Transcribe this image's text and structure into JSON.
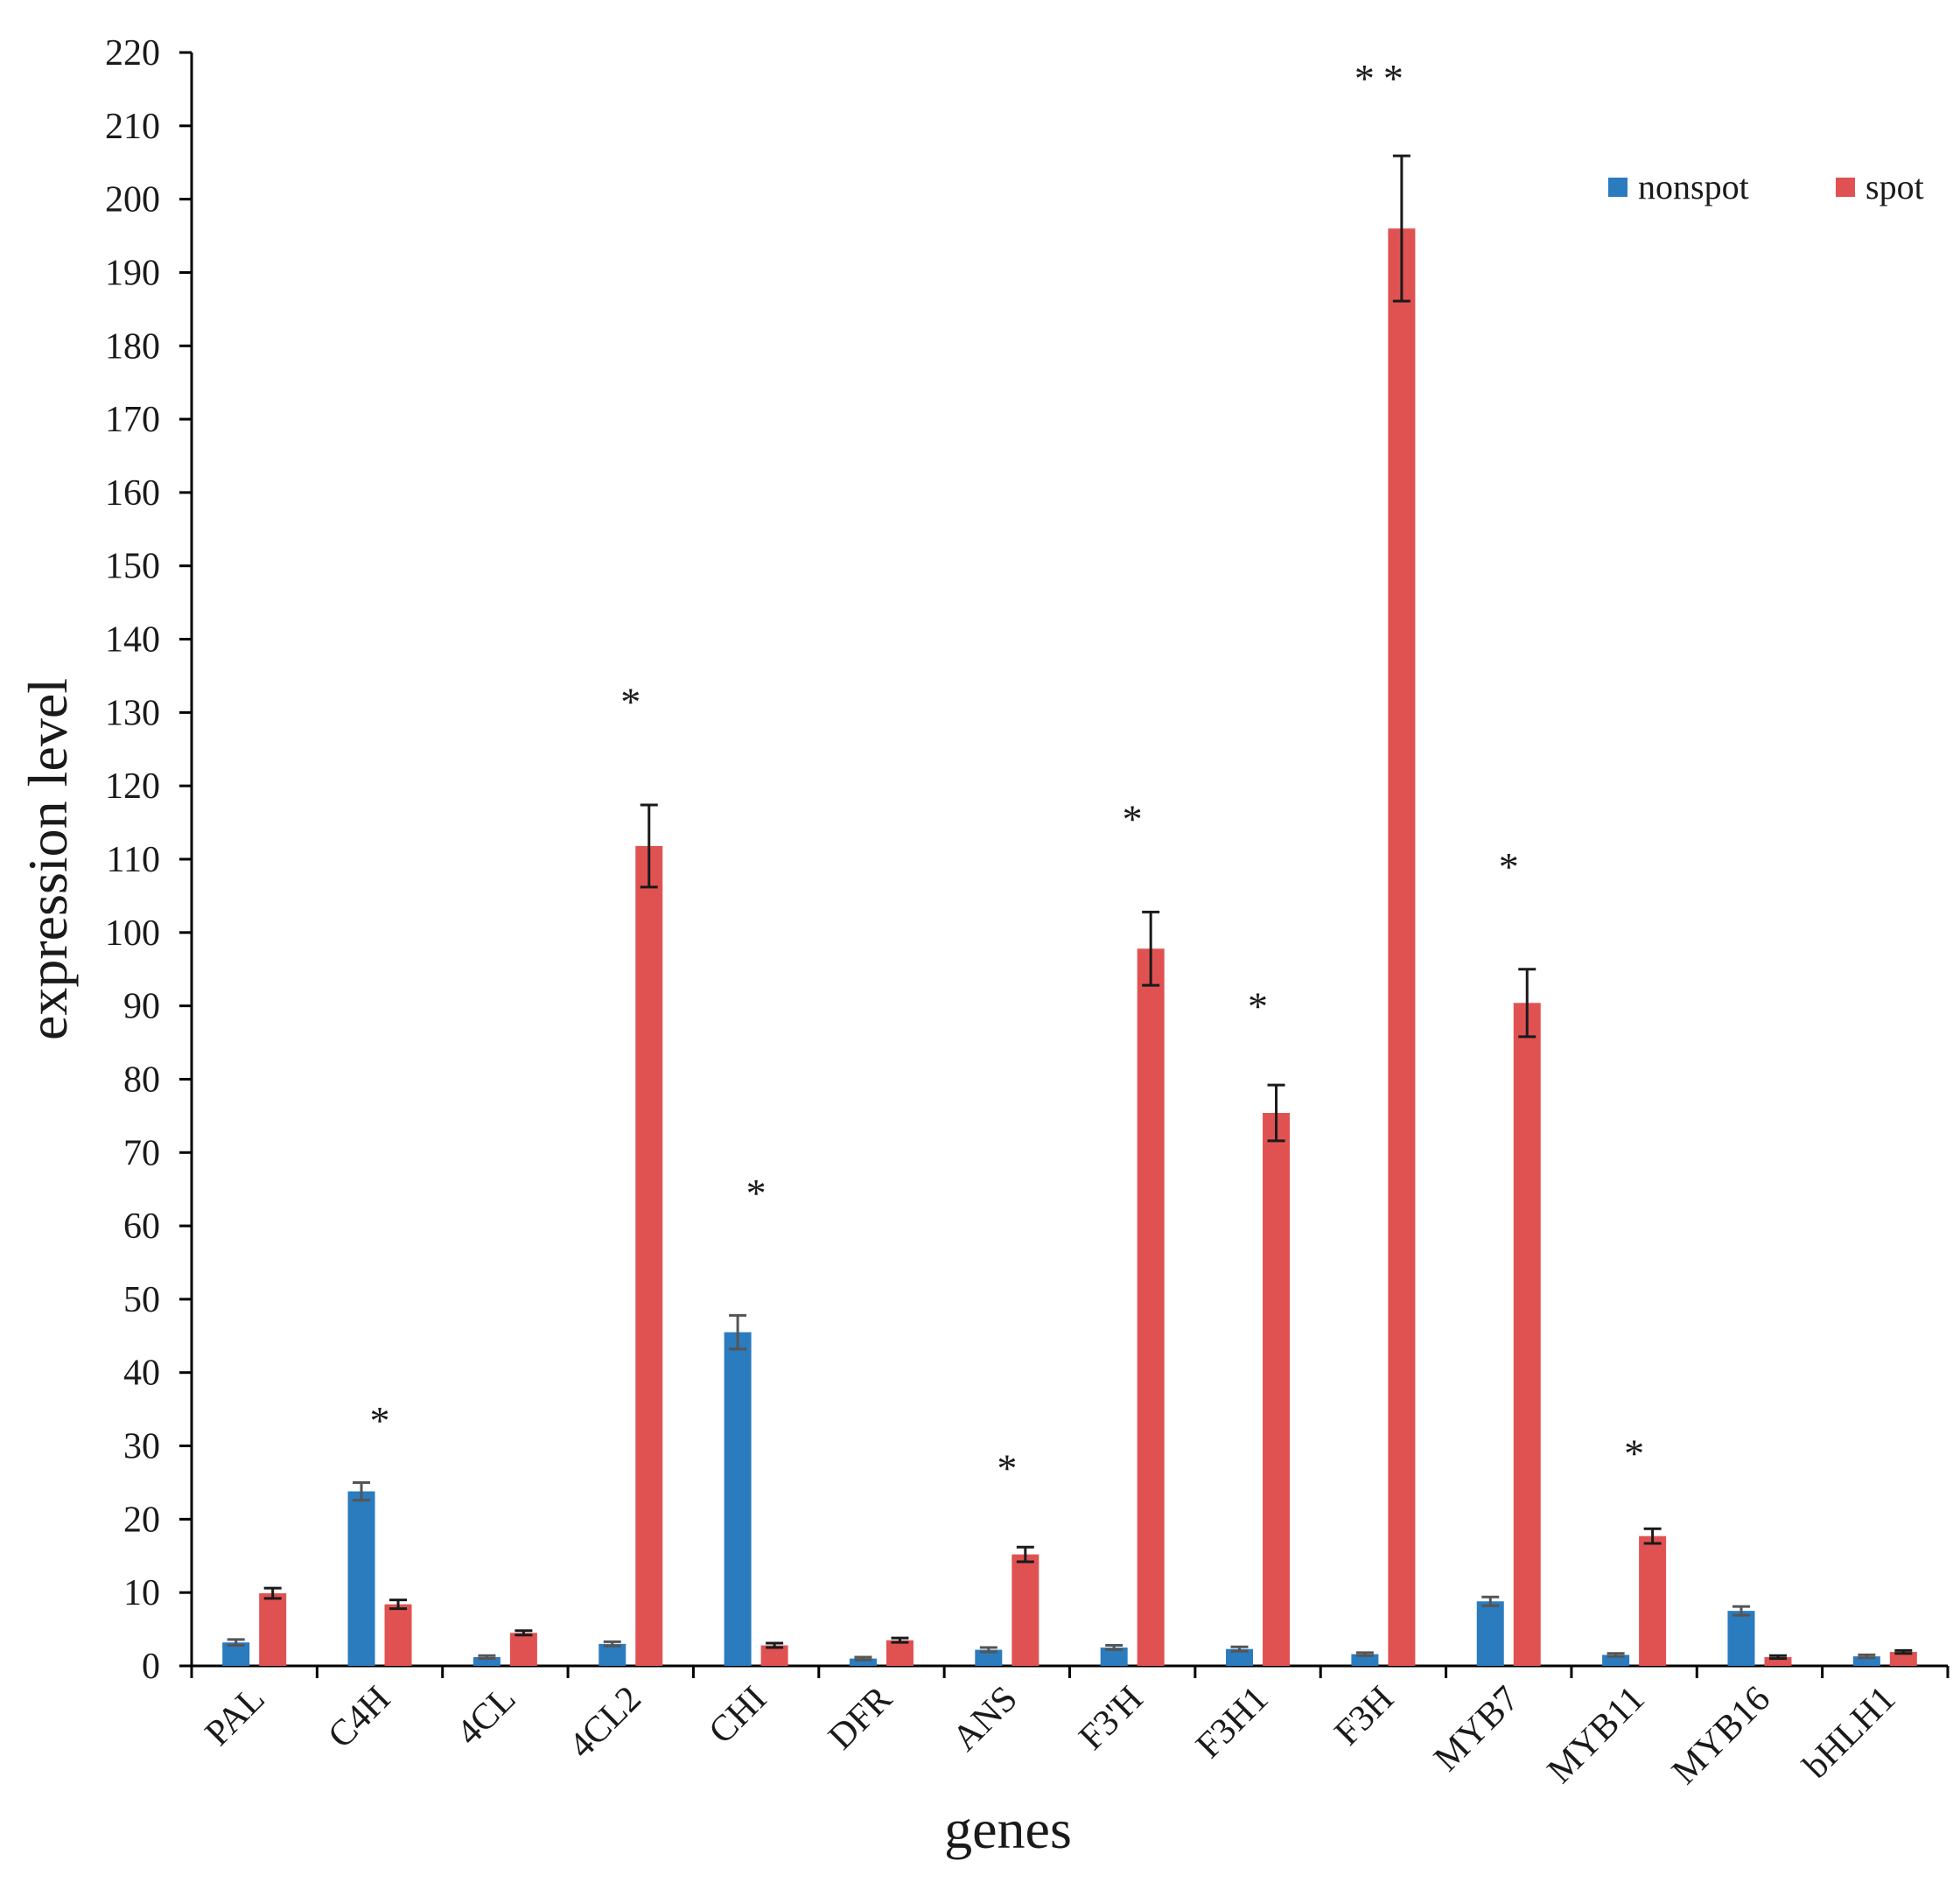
{
  "chart_data": {
    "type": "bar",
    "title": "",
    "xlabel": "genes",
    "ylabel": "expression level",
    "ylim": [
      0,
      220
    ],
    "yticks": [
      0,
      10,
      20,
      30,
      40,
      50,
      60,
      70,
      80,
      90,
      100,
      110,
      120,
      130,
      140,
      150,
      160,
      170,
      180,
      190,
      200,
      210,
      220
    ],
    "grid": false,
    "legend_position": "top-right",
    "categories": [
      "PAL",
      "C4H",
      "4CL",
      "4CL2",
      "CHI",
      "DFR",
      "ANS",
      "F3'H",
      "F3H1",
      "F3H",
      "MYB7",
      "MYB11",
      "MYB16",
      "bHLH1"
    ],
    "series": [
      {
        "name": "nonspot",
        "color": "#2b7bbf",
        "values": [
          3.2,
          23.8,
          1.2,
          3.0,
          45.5,
          1.0,
          2.2,
          2.5,
          2.3,
          1.6,
          8.8,
          1.5,
          7.5,
          1.3
        ],
        "errors": [
          0.4,
          1.2,
          0.2,
          0.3,
          2.3,
          0.2,
          0.3,
          0.3,
          0.3,
          0.2,
          0.6,
          0.2,
          0.6,
          0.2
        ]
      },
      {
        "name": "spot",
        "color": "#e05252",
        "values": [
          9.9,
          8.4,
          4.5,
          111.8,
          2.8,
          3.5,
          15.2,
          97.8,
          75.4,
          196.0,
          90.4,
          17.7,
          1.2,
          1.9
        ],
        "errors": [
          0.7,
          0.6,
          0.3,
          5.6,
          0.3,
          0.3,
          1.0,
          5.0,
          3.8,
          9.9,
          4.6,
          1.0,
          0.2,
          0.2
        ]
      }
    ],
    "annotations": [
      {
        "category": "C4H",
        "text": "*",
        "y": 34
      },
      {
        "category": "4CL2",
        "text": "*",
        "y": 132
      },
      {
        "category": "CHI",
        "text": "*",
        "y": 65
      },
      {
        "category": "ANS",
        "text": "*",
        "y": 27.5
      },
      {
        "category": "F3'H",
        "text": "*",
        "y": 116
      },
      {
        "category": "F3H1",
        "text": "*",
        "y": 90.5
      },
      {
        "category": "F3H",
        "text": "**",
        "y": 217
      },
      {
        "category": "MYB7",
        "text": "*",
        "y": 109.5
      },
      {
        "category": "MYB11",
        "text": "*",
        "y": 29.5
      }
    ]
  }
}
